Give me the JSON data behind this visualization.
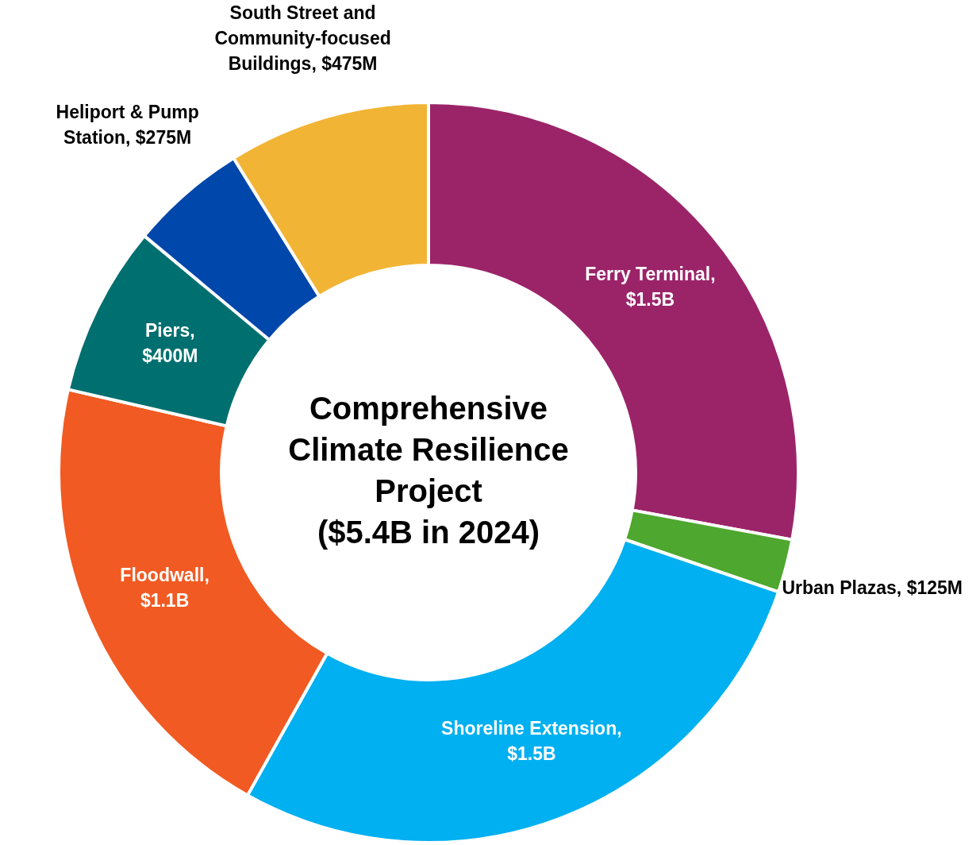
{
  "chart_data": {
    "type": "donut",
    "title": "Comprehensive Climate Resilience Project ($5.4B in 2024)",
    "categories": [
      "Ferry Terminal, $1.5B",
      "Urban Plazas, $125M",
      "Shoreline Extension, $1.5B",
      "Floodwall, $1.1B",
      "Piers, $400M",
      "Heliport & Pump Station, $275M",
      "South Street and Community-focused Buildings, $475M"
    ],
    "values": [
      1500,
      125,
      1500,
      1100,
      400,
      275,
      475
    ],
    "colors": [
      "#9b2469",
      "#4ea72e",
      "#00b0f0",
      "#f15a22",
      "#006f6f",
      "#0047ab",
      "#f1b434"
    ]
  }
}
